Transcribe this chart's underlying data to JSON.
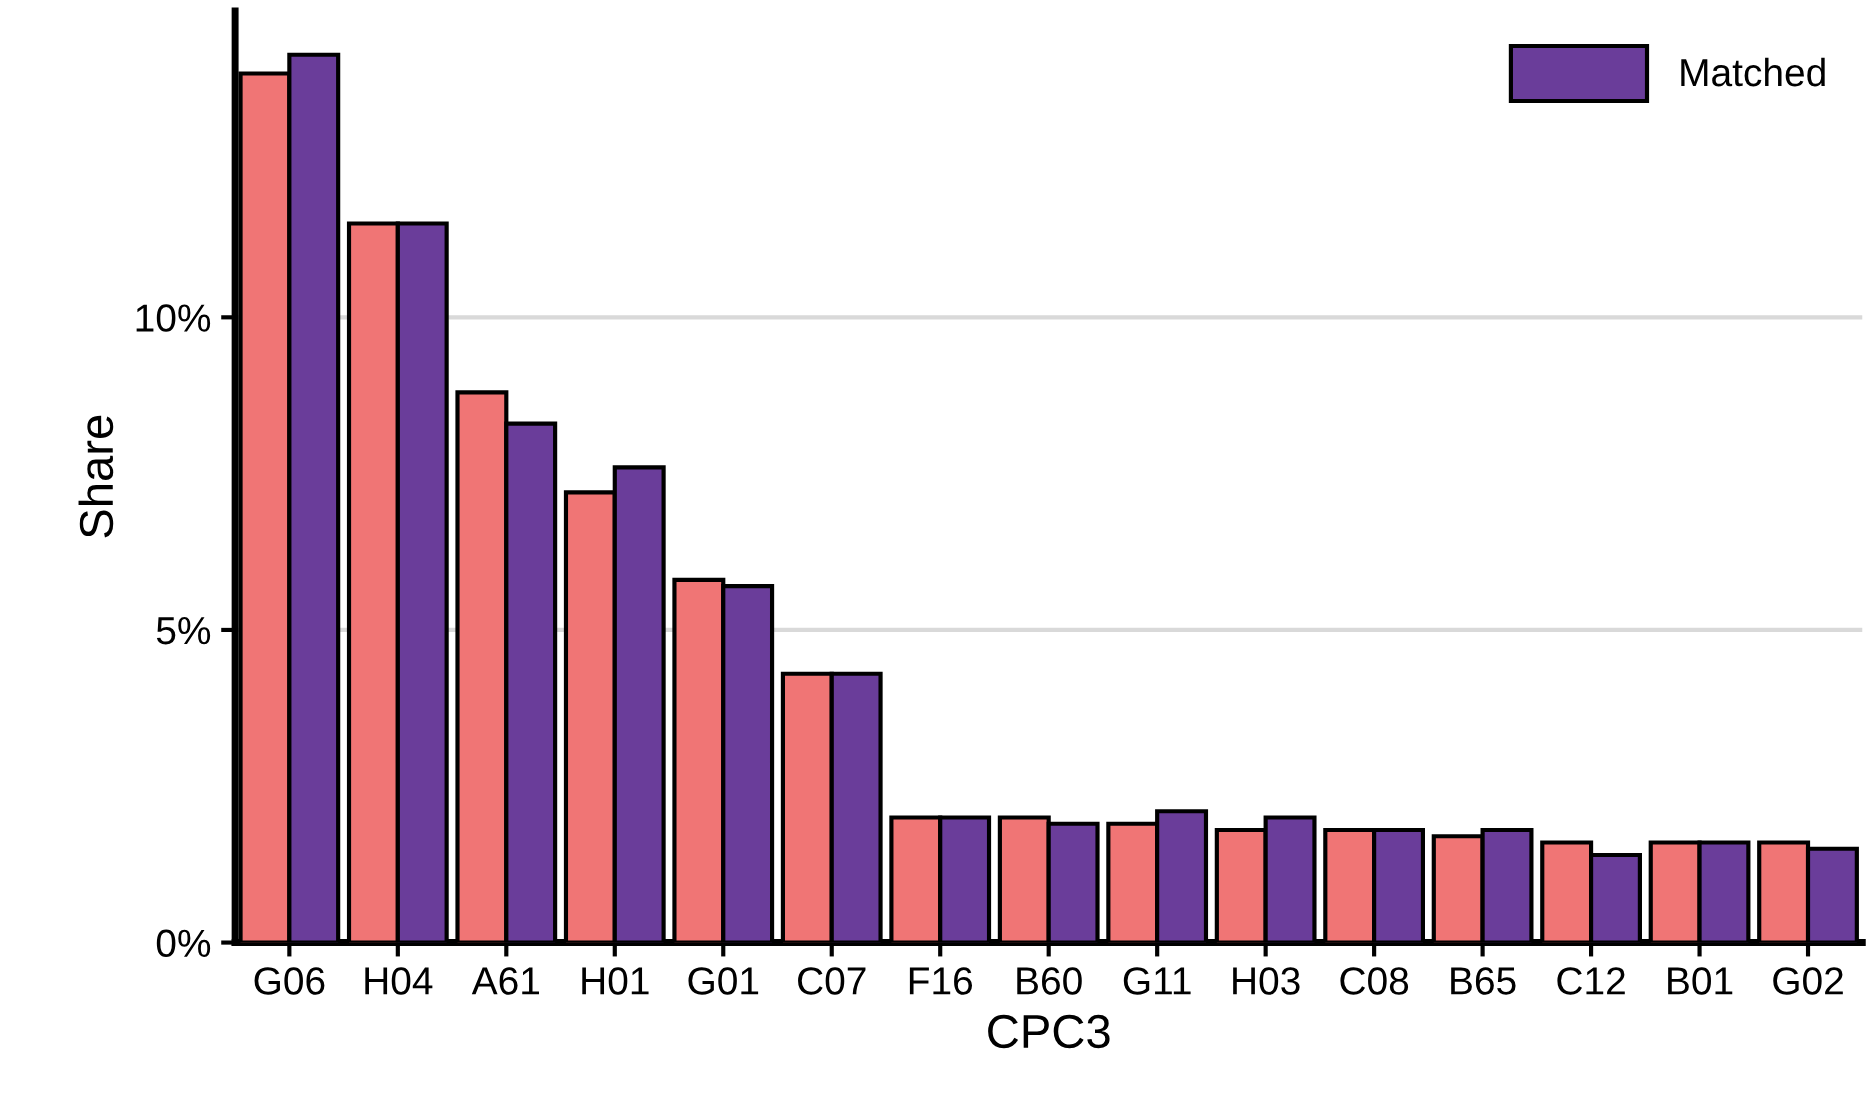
{
  "chart_data": {
    "type": "bar",
    "xlabel": "CPC3",
    "ylabel": "Share",
    "categories": [
      "G06",
      "H04",
      "A61",
      "H01",
      "G01",
      "C07",
      "F16",
      "B60",
      "G11",
      "H03",
      "C08",
      "B65",
      "C12",
      "B01",
      "G02"
    ],
    "series": [
      {
        "color": "#f07575",
        "values": [
          13.9,
          11.5,
          8.8,
          7.2,
          5.8,
          4.3,
          2.0,
          2.0,
          1.9,
          1.8,
          1.8,
          1.7,
          1.6,
          1.6,
          1.6
        ]
      },
      {
        "name": "Matched",
        "color": "#6a3d9a",
        "values": [
          14.2,
          11.5,
          8.3,
          7.6,
          5.7,
          4.3,
          2.0,
          1.9,
          2.1,
          2.0,
          1.8,
          1.8,
          1.4,
          1.6,
          1.5
        ]
      }
    ],
    "ylim": [
      0,
      14.9
    ],
    "yticks": [
      {
        "value": 0,
        "label": "0%"
      },
      {
        "value": 5,
        "label": "5%"
      },
      {
        "value": 10,
        "label": "10%"
      }
    ],
    "grid": "y",
    "legend": "top right"
  }
}
